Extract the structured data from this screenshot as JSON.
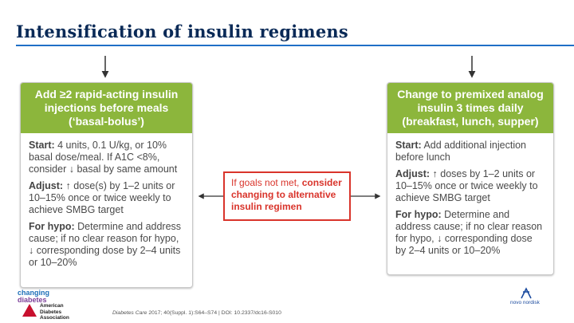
{
  "header": {
    "title": "Intensification of insulin regimens"
  },
  "left_card": {
    "heading": "Add ≥2 rapid-acting insulin injections before meals (‘basal-bolus’)",
    "start_label": "Start:",
    "start_text": " 4 units, 0.1 U/kg, or 10% basal dose/meal. If A1C <8%, consider ",
    "start_text2": " basal by same amount",
    "adjust_label": "Adjust:",
    "adjust_text": " dose(s) by 1–2 units or 10–15% once or twice weekly to achieve SMBG target",
    "hypo_label": "For hypo:",
    "hypo_text": " Determine and address cause; if no clear reason for hypo, ",
    "hypo_text2": " corresponding dose by 2–4 units or 10–20%"
  },
  "right_card": {
    "heading": "Change to premixed analog insulin 3 times daily (breakfast, lunch, supper)",
    "start_label": "Start:",
    "start_text": " Add additional injection before lunch",
    "adjust_label": "Adjust:",
    "adjust_text": " doses by 1–2 units or 10–15% once or twice weekly to achieve SMBG target",
    "hypo_label": "For hypo:",
    "hypo_text": " Determine and address cause; if no clear reason for hypo, ",
    "hypo_text2": " corresponding dose by 2–4 units or 10–20%"
  },
  "middle": {
    "text_plain": "If goals not met, ",
    "text_bold": "consider changing to alternative insulin regimen"
  },
  "footer": {
    "logo_changing": "changing",
    "logo_diabetes": "diabetes",
    "ada_line1": "American",
    "ada_line2": "Diabetes",
    "ada_line3": "Association",
    "citation_journal": "Diabetes Care",
    "citation_rest": " 2017; 40(Suppl. 1):S64–S74 | DOI: 10.2337/dc16-S010",
    "novo_text": "novo nordisk"
  },
  "colors": {
    "title": "#0a2a57",
    "rule": "#1f6fc7",
    "card_header": "#8cb63c",
    "middle_border": "#d9342b"
  }
}
